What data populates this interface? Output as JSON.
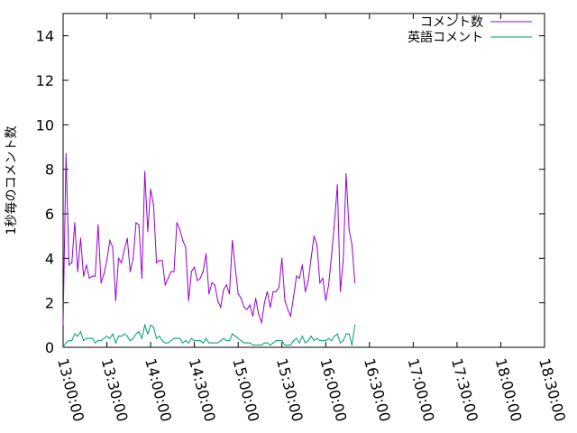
{
  "chart_data": {
    "type": "line",
    "ylabel": "1秒毎のコメント数",
    "ylim": [
      0,
      15
    ],
    "y_ticks": [
      "0",
      "2",
      "4",
      "6",
      "8",
      "10",
      "12",
      "14"
    ],
    "x_ticks": [
      "13:00:00",
      "13:30:00",
      "14:00:00",
      "14:30:00",
      "15:00:00",
      "15:30:00",
      "16:00:00",
      "16:30:00",
      "17:00:00",
      "17:30:00",
      "18:00:00",
      "18:30:00"
    ],
    "xlim": [
      "13:00:00",
      "18:30:00"
    ],
    "grid": false,
    "legend_position": "top-right",
    "series": [
      {
        "name": "コメント数",
        "color": "#9400d3",
        "points": [
          [
            "13:00:00",
            1.0
          ],
          [
            "13:02:00",
            8.7
          ],
          [
            "13:04:00",
            3.7
          ],
          [
            "13:06:00",
            3.8
          ],
          [
            "13:08:00",
            5.6
          ],
          [
            "13:10:00",
            3.4
          ],
          [
            "13:12:00",
            4.9
          ],
          [
            "13:14:00",
            3.2
          ],
          [
            "13:16:00",
            3.7
          ],
          [
            "13:18:00",
            3.1
          ],
          [
            "13:20:00",
            3.2
          ],
          [
            "13:22:00",
            3.2
          ],
          [
            "13:24:00",
            5.5
          ],
          [
            "13:26:00",
            2.9
          ],
          [
            "13:28:00",
            3.3
          ],
          [
            "13:30:00",
            3.9
          ],
          [
            "13:32:00",
            4.8
          ],
          [
            "13:34:00",
            4.5
          ],
          [
            "13:36:00",
            2.1
          ],
          [
            "13:38:00",
            4.0
          ],
          [
            "13:40:00",
            3.8
          ],
          [
            "13:42:00",
            4.4
          ],
          [
            "13:44:00",
            4.9
          ],
          [
            "13:46:00",
            3.4
          ],
          [
            "13:48:00",
            4.0
          ],
          [
            "13:50:00",
            5.6
          ],
          [
            "13:52:00",
            5.5
          ],
          [
            "13:54:00",
            3.1
          ],
          [
            "13:56:00",
            7.9
          ],
          [
            "13:58:00",
            5.2
          ],
          [
            "14:00:00",
            7.1
          ],
          [
            "14:02:00",
            6.4
          ],
          [
            "14:04:00",
            3.8
          ],
          [
            "14:06:00",
            3.9
          ],
          [
            "14:08:00",
            3.9
          ],
          [
            "14:10:00",
            2.8
          ],
          [
            "14:12:00",
            3.1
          ],
          [
            "14:14:00",
            3.4
          ],
          [
            "14:16:00",
            3.4
          ],
          [
            "14:18:00",
            5.6
          ],
          [
            "14:20:00",
            5.3
          ],
          [
            "14:22:00",
            4.8
          ],
          [
            "14:24:00",
            4.5
          ],
          [
            "14:26:00",
            2.1
          ],
          [
            "14:28:00",
            3.4
          ],
          [
            "14:30:00",
            3.6
          ],
          [
            "14:32:00",
            3.0
          ],
          [
            "14:34:00",
            3.1
          ],
          [
            "14:36:00",
            3.4
          ],
          [
            "14:38:00",
            4.2
          ],
          [
            "14:40:00",
            2.4
          ],
          [
            "14:42:00",
            2.9
          ],
          [
            "14:44:00",
            2.8
          ],
          [
            "14:46:00",
            2.1
          ],
          [
            "14:48:00",
            1.8
          ],
          [
            "14:50:00",
            2.6
          ],
          [
            "14:52:00",
            2.8
          ],
          [
            "14:54:00",
            2.4
          ],
          [
            "14:56:00",
            4.8
          ],
          [
            "14:58:00",
            3.6
          ],
          [
            "15:00:00",
            2.4
          ],
          [
            "15:02:00",
            2.2
          ],
          [
            "15:04:00",
            1.8
          ],
          [
            "15:06:00",
            1.7
          ],
          [
            "15:08:00",
            1.9
          ],
          [
            "15:10:00",
            1.4
          ],
          [
            "15:12:00",
            2.2
          ],
          [
            "15:14:00",
            1.5
          ],
          [
            "15:16:00",
            1.1
          ],
          [
            "15:18:00",
            2.0
          ],
          [
            "15:20:00",
            2.5
          ],
          [
            "15:22:00",
            1.8
          ],
          [
            "15:24:00",
            2.5
          ],
          [
            "15:26:00",
            2.5
          ],
          [
            "15:28:00",
            2.7
          ],
          [
            "15:30:00",
            4.0
          ],
          [
            "15:32:00",
            2.1
          ],
          [
            "15:34:00",
            1.7
          ],
          [
            "15:36:00",
            1.4
          ],
          [
            "15:38:00",
            2.3
          ],
          [
            "15:40:00",
            3.2
          ],
          [
            "15:42:00",
            3.1
          ],
          [
            "15:44:00",
            3.7
          ],
          [
            "15:46:00",
            2.5
          ],
          [
            "15:48:00",
            3.0
          ],
          [
            "15:50:00",
            4.0
          ],
          [
            "15:52:00",
            5.0
          ],
          [
            "15:54:00",
            4.6
          ],
          [
            "15:56:00",
            2.9
          ],
          [
            "15:58:00",
            3.1
          ],
          [
            "16:00:00",
            2.1
          ],
          [
            "16:02:00",
            2.8
          ],
          [
            "16:04:00",
            4.1
          ],
          [
            "16:06:00",
            5.6
          ],
          [
            "16:08:00",
            7.3
          ],
          [
            "16:10:00",
            2.5
          ],
          [
            "16:12:00",
            3.9
          ],
          [
            "16:14:00",
            7.8
          ],
          [
            "16:16:00",
            5.3
          ],
          [
            "16:18:00",
            4.6
          ],
          [
            "16:20:00",
            2.9
          ]
        ]
      },
      {
        "name": "英語コメント",
        "color": "#009e73",
        "points": [
          [
            "13:00:00",
            0.0
          ],
          [
            "13:02:00",
            0.2
          ],
          [
            "13:04:00",
            0.3
          ],
          [
            "13:06:00",
            0.3
          ],
          [
            "13:08:00",
            0.6
          ],
          [
            "13:10:00",
            0.5
          ],
          [
            "13:12:00",
            0.7
          ],
          [
            "13:14:00",
            0.3
          ],
          [
            "13:16:00",
            0.4
          ],
          [
            "13:18:00",
            0.4
          ],
          [
            "13:20:00",
            0.4
          ],
          [
            "13:22:00",
            0.2
          ],
          [
            "13:24:00",
            0.3
          ],
          [
            "13:26:00",
            0.3
          ],
          [
            "13:28:00",
            0.4
          ],
          [
            "13:30:00",
            0.5
          ],
          [
            "13:32:00",
            0.4
          ],
          [
            "13:34:00",
            0.6
          ],
          [
            "13:36:00",
            0.2
          ],
          [
            "13:38:00",
            0.5
          ],
          [
            "13:40:00",
            0.5
          ],
          [
            "13:42:00",
            0.6
          ],
          [
            "13:44:00",
            0.5
          ],
          [
            "13:46:00",
            0.3
          ],
          [
            "13:48:00",
            0.4
          ],
          [
            "13:50:00",
            0.6
          ],
          [
            "13:52:00",
            0.7
          ],
          [
            "13:54:00",
            0.4
          ],
          [
            "13:56:00",
            1.0
          ],
          [
            "13:58:00",
            0.6
          ],
          [
            "14:00:00",
            1.0
          ],
          [
            "14:02:00",
            0.9
          ],
          [
            "14:04:00",
            0.4
          ],
          [
            "14:06:00",
            0.5
          ],
          [
            "14:08:00",
            0.3
          ],
          [
            "14:10:00",
            0.2
          ],
          [
            "14:12:00",
            0.2
          ],
          [
            "14:14:00",
            0.3
          ],
          [
            "14:16:00",
            0.4
          ],
          [
            "14:18:00",
            0.4
          ],
          [
            "14:20:00",
            0.4
          ],
          [
            "14:22:00",
            0.2
          ],
          [
            "14:24:00",
            0.3
          ],
          [
            "14:26:00",
            0.2
          ],
          [
            "14:28:00",
            0.4
          ],
          [
            "14:30:00",
            0.3
          ],
          [
            "14:32:00",
            0.3
          ],
          [
            "14:34:00",
            0.3
          ],
          [
            "14:36:00",
            0.2
          ],
          [
            "14:38:00",
            0.4
          ],
          [
            "14:40:00",
            0.2
          ],
          [
            "14:42:00",
            0.2
          ],
          [
            "14:44:00",
            0.2
          ],
          [
            "14:46:00",
            0.2
          ],
          [
            "14:48:00",
            0.3
          ],
          [
            "14:50:00",
            0.4
          ],
          [
            "14:52:00",
            0.3
          ],
          [
            "14:54:00",
            0.3
          ],
          [
            "14:56:00",
            0.6
          ],
          [
            "14:58:00",
            0.5
          ],
          [
            "15:00:00",
            0.4
          ],
          [
            "15:02:00",
            0.3
          ],
          [
            "15:04:00",
            0.2
          ],
          [
            "15:06:00",
            0.2
          ],
          [
            "15:08:00",
            0.2
          ],
          [
            "15:10:00",
            0.1
          ],
          [
            "15:12:00",
            0.1
          ],
          [
            "15:14:00",
            0.1
          ],
          [
            "15:16:00",
            0.1
          ],
          [
            "15:18:00",
            0.2
          ],
          [
            "15:20:00",
            0.2
          ],
          [
            "15:22:00",
            0.1
          ],
          [
            "15:24:00",
            0.2
          ],
          [
            "15:26:00",
            0.3
          ],
          [
            "15:28:00",
            0.3
          ],
          [
            "15:30:00",
            0.3
          ],
          [
            "15:32:00",
            0.1
          ],
          [
            "15:34:00",
            0.1
          ],
          [
            "15:36:00",
            0.1
          ],
          [
            "15:38:00",
            0.3
          ],
          [
            "15:40:00",
            0.4
          ],
          [
            "15:42:00",
            0.2
          ],
          [
            "15:44:00",
            0.5
          ],
          [
            "15:46:00",
            0.2
          ],
          [
            "15:48:00",
            0.3
          ],
          [
            "15:50:00",
            0.5
          ],
          [
            "15:52:00",
            0.3
          ],
          [
            "15:54:00",
            0.4
          ],
          [
            "15:56:00",
            0.3
          ],
          [
            "15:58:00",
            0.3
          ],
          [
            "16:00:00",
            0.3
          ],
          [
            "16:02:00",
            0.4
          ],
          [
            "16:04:00",
            0.3
          ],
          [
            "16:06:00",
            0.5
          ],
          [
            "16:08:00",
            0.6
          ],
          [
            "16:10:00",
            0.2
          ],
          [
            "16:12:00",
            0.3
          ],
          [
            "16:14:00",
            0.6
          ],
          [
            "16:16:00",
            0.6
          ],
          [
            "16:18:00",
            0.1
          ],
          [
            "16:20:00",
            1.0
          ]
        ]
      }
    ]
  }
}
